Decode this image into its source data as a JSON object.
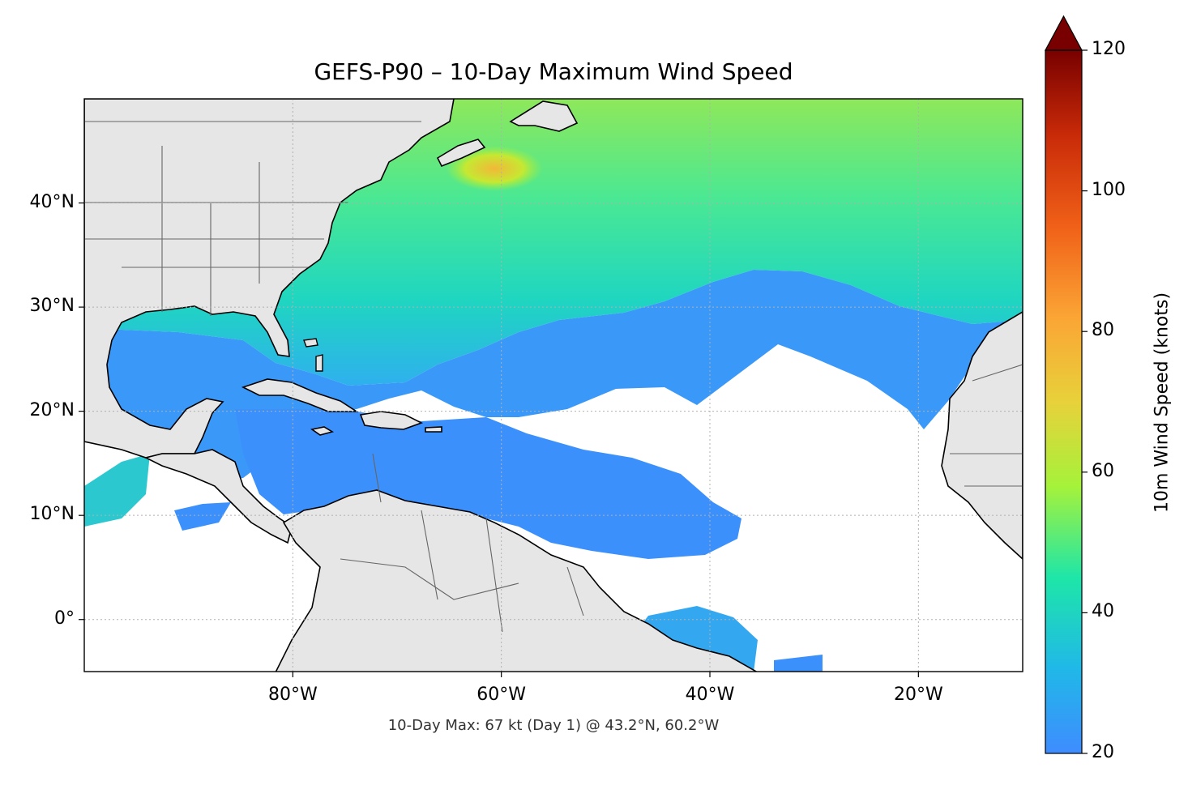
{
  "title": "GEFS-P90 – 10-Day Maximum Wind Speed",
  "footnote": "10-Day Max: 67 kt (Day 1) @ 43.2°N, 60.2°W",
  "map_extent": {
    "lon_min": -100,
    "lon_max": -10,
    "lat_min": -5,
    "lat_max": 50
  },
  "latitude_ticks": [
    {
      "value": 40,
      "label": "40°N"
    },
    {
      "value": 30,
      "label": "30°N"
    },
    {
      "value": 20,
      "label": "20°N"
    },
    {
      "value": 10,
      "label": "10°N"
    },
    {
      "value": 0,
      "label": "0°"
    }
  ],
  "longitude_ticks": [
    {
      "value": -80,
      "label": "80°W"
    },
    {
      "value": -60,
      "label": "60°W"
    },
    {
      "value": -40,
      "label": "40°W"
    },
    {
      "value": -20,
      "label": "20°W"
    }
  ],
  "colorbar": {
    "title": "10m Wind Speed (knots)",
    "min": 20,
    "max": 120,
    "extend": "max",
    "ticks": [
      {
        "value": 20,
        "label": "20"
      },
      {
        "value": 40,
        "label": "40"
      },
      {
        "value": 60,
        "label": "60"
      },
      {
        "value": 80,
        "label": "80"
      },
      {
        "value": 100,
        "label": "100"
      },
      {
        "value": 120,
        "label": "120"
      }
    ],
    "colors": [
      "#3f8cff",
      "#20b8e8",
      "#1ee6a8",
      "#a6f23a",
      "#e8d13a",
      "#fba535",
      "#f06018",
      "#c82a08",
      "#780000"
    ]
  },
  "colors": {
    "land": "#e6e6e6",
    "ocean_calm": "#ffffff",
    "coastline": "#000000",
    "borders": "#666666",
    "gridline": "#b0b0b0"
  }
}
